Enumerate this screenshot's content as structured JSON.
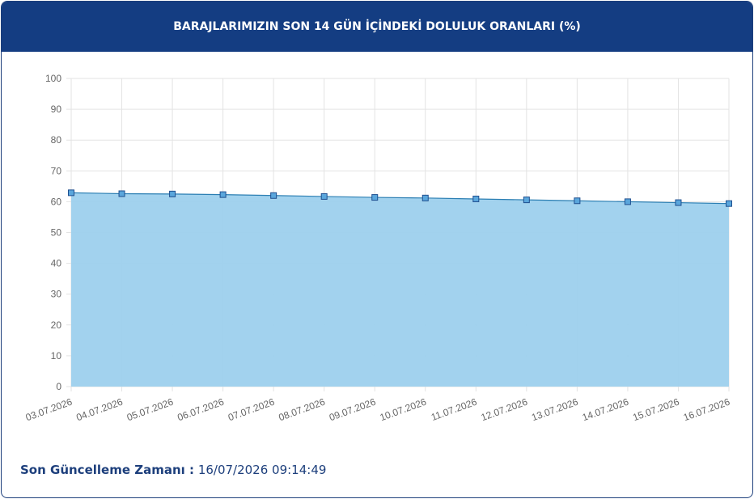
{
  "chart_data": {
    "type": "area",
    "title": "BARAJLARIMIZIN SON 14 GÜN İÇİNDEKİ DOLULUK ORANLARI (%)",
    "categories": [
      "03.07.2026",
      "04.07.2026",
      "05.07.2026",
      "06.07.2026",
      "07.07.2026",
      "08.07.2026",
      "09.07.2026",
      "10.07.2026",
      "11.07.2026",
      "12.07.2026",
      "13.07.2026",
      "14.07.2026",
      "15.07.2026",
      "16.07.2026"
    ],
    "values": [
      62.9,
      62.6,
      62.5,
      62.3,
      62.0,
      61.7,
      61.4,
      61.2,
      60.9,
      60.6,
      60.3,
      60.0,
      59.7,
      59.4
    ],
    "color": "#9dd0ed",
    "line_color": "#2c7fb3",
    "ylim": [
      0,
      100
    ],
    "yticks": [
      0,
      10,
      20,
      30,
      40,
      50,
      60,
      70,
      80,
      90,
      100
    ],
    "grid": true
  },
  "footer": {
    "label": "Son Güncelleme Zamanı :",
    "value": "16/07/2026 09:14:49"
  }
}
